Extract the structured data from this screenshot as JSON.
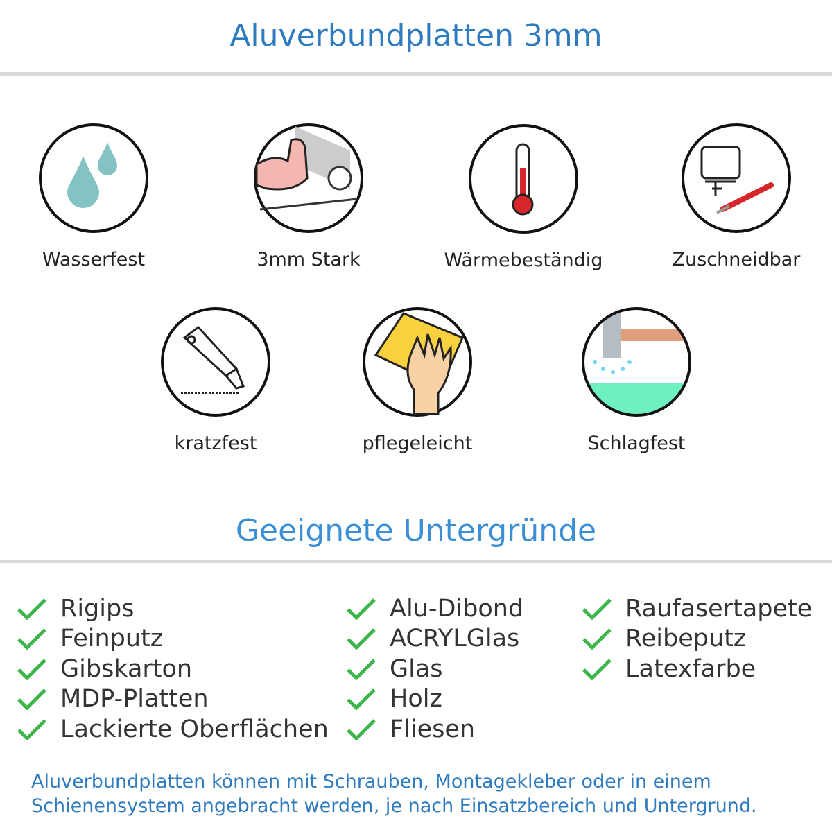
{
  "header": {
    "title": "Aluverbundplatten 3mm"
  },
  "features": [
    {
      "label": "Wasserfest",
      "icon": "water-drops-icon"
    },
    {
      "label": "3mm Stark",
      "icon": "strong-arm-icon"
    },
    {
      "label": "Wärmebeständig",
      "icon": "thermometer-icon"
    },
    {
      "label": "Zuschneidbar",
      "icon": "jigsaw-knife-icon"
    },
    {
      "label": "kratzfest",
      "icon": "cutter-knife-icon"
    },
    {
      "label": "pflegeleicht",
      "icon": "hand-cloth-icon"
    },
    {
      "label": "Schlagfest",
      "icon": "hammer-icon"
    }
  ],
  "surfaces": {
    "title": "Geeignete Untergründe",
    "check_color": "#3cb54a",
    "columns": [
      [
        "Rigips",
        "Feinputz",
        "Gibskarton",
        "MDP-Platten",
        "Lackierte Oberflächen"
      ],
      [
        "Alu-Dibond",
        "ACRYLGlas",
        "Glas",
        "Holz",
        "Fliesen"
      ],
      [
        "Raufasertapete",
        "Reibeputz",
        "Latexfarbe"
      ]
    ]
  },
  "footer": {
    "line1": "Aluverbundplatten können mit Schrauben, Montagekleber oder in einem",
    "line2": "Schienensystem angebracht werden, je nach Einsatzbereich und Untergrund."
  },
  "colors": {
    "heading": "#2f7bbf",
    "divider": "#d9d9d9"
  }
}
